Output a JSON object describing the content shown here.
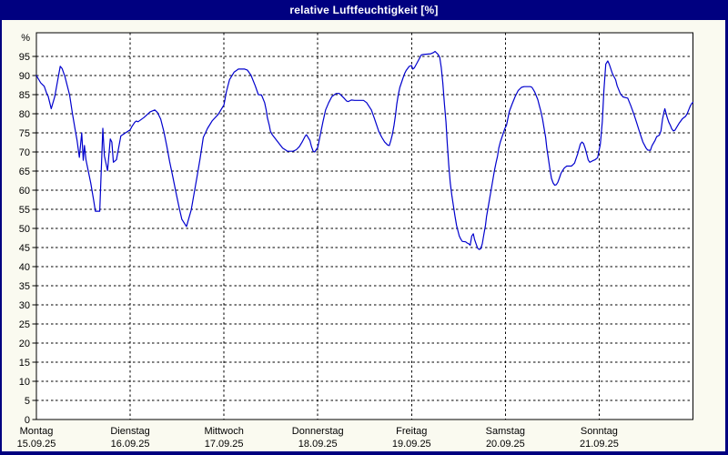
{
  "window": {
    "title": "relative Luftfeuchtigkeit [%]"
  },
  "colors": {
    "title_bar": "#000080",
    "title_text": "#ffffff",
    "window_border": "#000080",
    "outer_bg": "#fafaf0",
    "plot_bg": "#ffffff",
    "grid": "#000000",
    "axis": "#000000",
    "text": "#000000",
    "curve": "#0000cd"
  },
  "chart_data": {
    "type": "line",
    "title": "relative Luftfeuchtigkeit [%]",
    "ylabel": "%",
    "unit_label": "%",
    "ylim": [
      0,
      100
    ],
    "ytick_step": 5,
    "y_ticks": [
      0,
      5,
      10,
      15,
      20,
      25,
      30,
      35,
      40,
      45,
      50,
      55,
      60,
      65,
      70,
      75,
      80,
      85,
      90,
      95
    ],
    "x_hours_total": 168,
    "grid": true,
    "legend": false,
    "days": [
      {
        "name": "Montag",
        "date": "15.09.25"
      },
      {
        "name": "Dienstag",
        "date": "16.09.25"
      },
      {
        "name": "Mittwoch",
        "date": "17.09.25"
      },
      {
        "name": "Donnerstag",
        "date": "18.09.25"
      },
      {
        "name": "Freitag",
        "date": "19.09.25"
      },
      {
        "name": "Samstag",
        "date": "20.09.25"
      },
      {
        "name": "Sonntag",
        "date": "21.09.25"
      }
    ],
    "series": [
      {
        "name": "relative Luftfeuchtigkeit",
        "color": "#0000cd",
        "points": [
          [
            0,
            90
          ],
          [
            1.1,
            88.1
          ],
          [
            2,
            87.2
          ],
          [
            2.6,
            85.4
          ],
          [
            3,
            84.6
          ],
          [
            3.8,
            81.3
          ],
          [
            4.7,
            84.5
          ],
          [
            5.4,
            88.5
          ],
          [
            6.1,
            92.4
          ],
          [
            6.6,
            91.8
          ],
          [
            7.3,
            89.7
          ],
          [
            8.5,
            84.9
          ],
          [
            9.2,
            80.2
          ],
          [
            10,
            75.4
          ],
          [
            10.4,
            73
          ],
          [
            11,
            68.6
          ],
          [
            11.6,
            75
          ],
          [
            12,
            67.8
          ],
          [
            12.3,
            71.7
          ],
          [
            12.7,
            67.9
          ],
          [
            13.9,
            61.9
          ],
          [
            14.7,
            57.1
          ],
          [
            15.1,
            54.5
          ],
          [
            16.2,
            54.5
          ],
          [
            17,
            76.2
          ],
          [
            17.4,
            69
          ],
          [
            18.2,
            65.1
          ],
          [
            18.9,
            73.4
          ],
          [
            19.3,
            72.6
          ],
          [
            19.7,
            67.3
          ],
          [
            20.5,
            68
          ],
          [
            21.6,
            74.2
          ],
          [
            22.8,
            75
          ],
          [
            24,
            75.8
          ],
          [
            24.4,
            76.6
          ],
          [
            25.2,
            77.8
          ],
          [
            25.6,
            78.1
          ],
          [
            26,
            77.9
          ],
          [
            27.5,
            79
          ],
          [
            29.1,
            80.5
          ],
          [
            30.3,
            81
          ],
          [
            31,
            80.3
          ],
          [
            31.8,
            78.6
          ],
          [
            32.6,
            75.4
          ],
          [
            33.4,
            71.4
          ],
          [
            34.1,
            67.5
          ],
          [
            34.9,
            63.5
          ],
          [
            35.7,
            59.5
          ],
          [
            36.5,
            55.5
          ],
          [
            37.2,
            52.4
          ],
          [
            38.4,
            50.5
          ],
          [
            39.6,
            54.8
          ],
          [
            41.1,
            63.5
          ],
          [
            41.9,
            68.3
          ],
          [
            42.7,
            73.8
          ],
          [
            43.8,
            76.2
          ],
          [
            45,
            78.2
          ],
          [
            46.5,
            79.8
          ],
          [
            48,
            82.3
          ],
          [
            48.6,
            85.7
          ],
          [
            49.4,
            88.9
          ],
          [
            50.6,
            90.9
          ],
          [
            51.7,
            91.7
          ],
          [
            53.3,
            91.7
          ],
          [
            54,
            91.4
          ],
          [
            54.9,
            90.1
          ],
          [
            56,
            87.3
          ],
          [
            56.8,
            85
          ],
          [
            57.6,
            84.9
          ],
          [
            58.4,
            82.9
          ],
          [
            58.8,
            81
          ],
          [
            59.1,
            79
          ],
          [
            59.6,
            76.9
          ],
          [
            59.9,
            75.4
          ],
          [
            60.3,
            74.6
          ],
          [
            61.5,
            73
          ],
          [
            62.2,
            72.1
          ],
          [
            63,
            71
          ],
          [
            63.8,
            70.5
          ],
          [
            64.2,
            70.2
          ],
          [
            65.7,
            70.2
          ],
          [
            66.5,
            70.6
          ],
          [
            67.3,
            71.4
          ],
          [
            68,
            72.6
          ],
          [
            68.8,
            74.2
          ],
          [
            69.1,
            74.5
          ],
          [
            70,
            73
          ],
          [
            70.4,
            71.4
          ],
          [
            70.8,
            70.2
          ],
          [
            71.2,
            70
          ],
          [
            72,
            71.2
          ],
          [
            72.5,
            73.8
          ],
          [
            73.3,
            77.8
          ],
          [
            74,
            81
          ],
          [
            74.8,
            82.9
          ],
          [
            75.6,
            84.5
          ],
          [
            76.7,
            85.3
          ],
          [
            77.5,
            85.3
          ],
          [
            78.7,
            84.1
          ],
          [
            79.4,
            83.3
          ],
          [
            79.8,
            83.2
          ],
          [
            80.6,
            83.6
          ],
          [
            81.4,
            83.5
          ],
          [
            83.7,
            83.5
          ],
          [
            84.5,
            82.9
          ],
          [
            85.7,
            81
          ],
          [
            86.4,
            79
          ],
          [
            86.8,
            77.8
          ],
          [
            87.6,
            75.4
          ],
          [
            88.4,
            73.8
          ],
          [
            89.1,
            72.6
          ],
          [
            89.9,
            71.8
          ],
          [
            90.3,
            71.7
          ],
          [
            90.7,
            73
          ],
          [
            91.1,
            74.6
          ],
          [
            91.5,
            77
          ],
          [
            91.9,
            79.8
          ],
          [
            92.2,
            82.5
          ],
          [
            92.6,
            85
          ],
          [
            93,
            86.9
          ],
          [
            93.4,
            88.1
          ],
          [
            93.8,
            89.3
          ],
          [
            94.2,
            90.5
          ],
          [
            94.6,
            91.3
          ],
          [
            95.4,
            92.4
          ],
          [
            96,
            92.6
          ],
          [
            96.3,
            91.7
          ],
          [
            96.7,
            92
          ],
          [
            97.4,
            93.3
          ],
          [
            98.5,
            95.4
          ],
          [
            99,
            95.5
          ],
          [
            100.9,
            95.7
          ],
          [
            101.6,
            96
          ],
          [
            102,
            96.3
          ],
          [
            102.8,
            95.5
          ],
          [
            103.2,
            94.8
          ],
          [
            103.6,
            92.1
          ],
          [
            104,
            88.1
          ],
          [
            104.4,
            82.5
          ],
          [
            104.8,
            77.8
          ],
          [
            105.1,
            72.6
          ],
          [
            105.5,
            66.7
          ],
          [
            105.9,
            61.9
          ],
          [
            106.3,
            58.7
          ],
          [
            106.7,
            56
          ],
          [
            107.1,
            53.2
          ],
          [
            107.5,
            50.8
          ],
          [
            107.9,
            49.2
          ],
          [
            108.2,
            48
          ],
          [
            108.6,
            47.2
          ],
          [
            109,
            46.6
          ],
          [
            109.8,
            46.5
          ],
          [
            110.2,
            46.2
          ],
          [
            110.6,
            46
          ],
          [
            111,
            45.6
          ],
          [
            111.4,
            48
          ],
          [
            111.8,
            48.6
          ],
          [
            112.1,
            47.2
          ],
          [
            112.5,
            46
          ],
          [
            112.9,
            44.8
          ],
          [
            113.3,
            44.5
          ],
          [
            113.7,
            44.7
          ],
          [
            114.1,
            46
          ],
          [
            114.5,
            48.4
          ],
          [
            114.9,
            50.8
          ],
          [
            115.2,
            53.2
          ],
          [
            115.6,
            55.6
          ],
          [
            116,
            58
          ],
          [
            116.4,
            60.3
          ],
          [
            116.8,
            62.7
          ],
          [
            117.2,
            65.1
          ],
          [
            117.6,
            67.1
          ],
          [
            118,
            69
          ],
          [
            118.3,
            71
          ],
          [
            118.7,
            72.6
          ],
          [
            119.1,
            73.8
          ],
          [
            119.5,
            75
          ],
          [
            119.9,
            76.2
          ],
          [
            120.3,
            77
          ],
          [
            121,
            80.6
          ],
          [
            121.7,
            82.5
          ],
          [
            122.5,
            84.5
          ],
          [
            123.3,
            86.1
          ],
          [
            124.1,
            86.9
          ],
          [
            124.8,
            87.1
          ],
          [
            126.4,
            87.1
          ],
          [
            126.8,
            86.9
          ],
          [
            127.5,
            85.7
          ],
          [
            128.3,
            83.7
          ],
          [
            128.7,
            82.1
          ],
          [
            129.1,
            80.6
          ],
          [
            129.5,
            78.6
          ],
          [
            129.9,
            76.2
          ],
          [
            130.3,
            73.8
          ],
          [
            130.6,
            71
          ],
          [
            131,
            68.3
          ],
          [
            131.4,
            65.5
          ],
          [
            131.8,
            63.1
          ],
          [
            132.2,
            61.9
          ],
          [
            132.6,
            61.3
          ],
          [
            133,
            61.4
          ],
          [
            133.4,
            62
          ],
          [
            133.8,
            63.1
          ],
          [
            134.2,
            64.3
          ],
          [
            134.6,
            65.1
          ],
          [
            135,
            65.7
          ],
          [
            135.3,
            66
          ],
          [
            135.7,
            66.3
          ],
          [
            136.9,
            66.3
          ],
          [
            137.3,
            66.7
          ],
          [
            137.7,
            67.1
          ],
          [
            138.1,
            68.3
          ],
          [
            138.5,
            69.5
          ],
          [
            138.9,
            71
          ],
          [
            139.2,
            72.1
          ],
          [
            139.6,
            72.6
          ],
          [
            140,
            72.2
          ],
          [
            140.4,
            71
          ],
          [
            140.8,
            69.5
          ],
          [
            141.2,
            67.9
          ],
          [
            141.6,
            67.3
          ],
          [
            142,
            67.5
          ],
          [
            142.3,
            67.7
          ],
          [
            143,
            68
          ],
          [
            143.6,
            68.5
          ],
          [
            144.3,
            72
          ],
          [
            144.8,
            78
          ],
          [
            145.2,
            86
          ],
          [
            145.7,
            93
          ],
          [
            146.2,
            93.8
          ],
          [
            146.6,
            92.9
          ],
          [
            147.4,
            90.5
          ],
          [
            148.2,
            88.9
          ],
          [
            148.6,
            87.3
          ],
          [
            149.4,
            85.3
          ],
          [
            150.1,
            84.4
          ],
          [
            150.9,
            84.2
          ],
          [
            151.3,
            84.1
          ],
          [
            152.1,
            82.1
          ],
          [
            152.9,
            79.8
          ],
          [
            153.6,
            77.6
          ],
          [
            154.4,
            75
          ],
          [
            155.2,
            72.6
          ],
          [
            156,
            71
          ],
          [
            156.4,
            70.5
          ],
          [
            157.1,
            70.4
          ],
          [
            157.5,
            71.6
          ],
          [
            157.9,
            72.3
          ],
          [
            158.3,
            73
          ],
          [
            158.7,
            74
          ],
          [
            159.4,
            74.4
          ],
          [
            159.8,
            75.5
          ],
          [
            160.2,
            78.5
          ],
          [
            160.6,
            80.5
          ],
          [
            160.8,
            81.3
          ],
          [
            161.4,
            79
          ],
          [
            161.8,
            77.8
          ],
          [
            162.2,
            77
          ],
          [
            162.6,
            76
          ],
          [
            163,
            75.5
          ],
          [
            163.4,
            75.7
          ],
          [
            163.8,
            76.4
          ],
          [
            164.5,
            77.6
          ],
          [
            165.3,
            78.7
          ],
          [
            166.1,
            79.3
          ],
          [
            166.5,
            80
          ],
          [
            166.9,
            81
          ],
          [
            167.3,
            82
          ],
          [
            167.7,
            82.7
          ],
          [
            168,
            83
          ]
        ]
      }
    ]
  }
}
